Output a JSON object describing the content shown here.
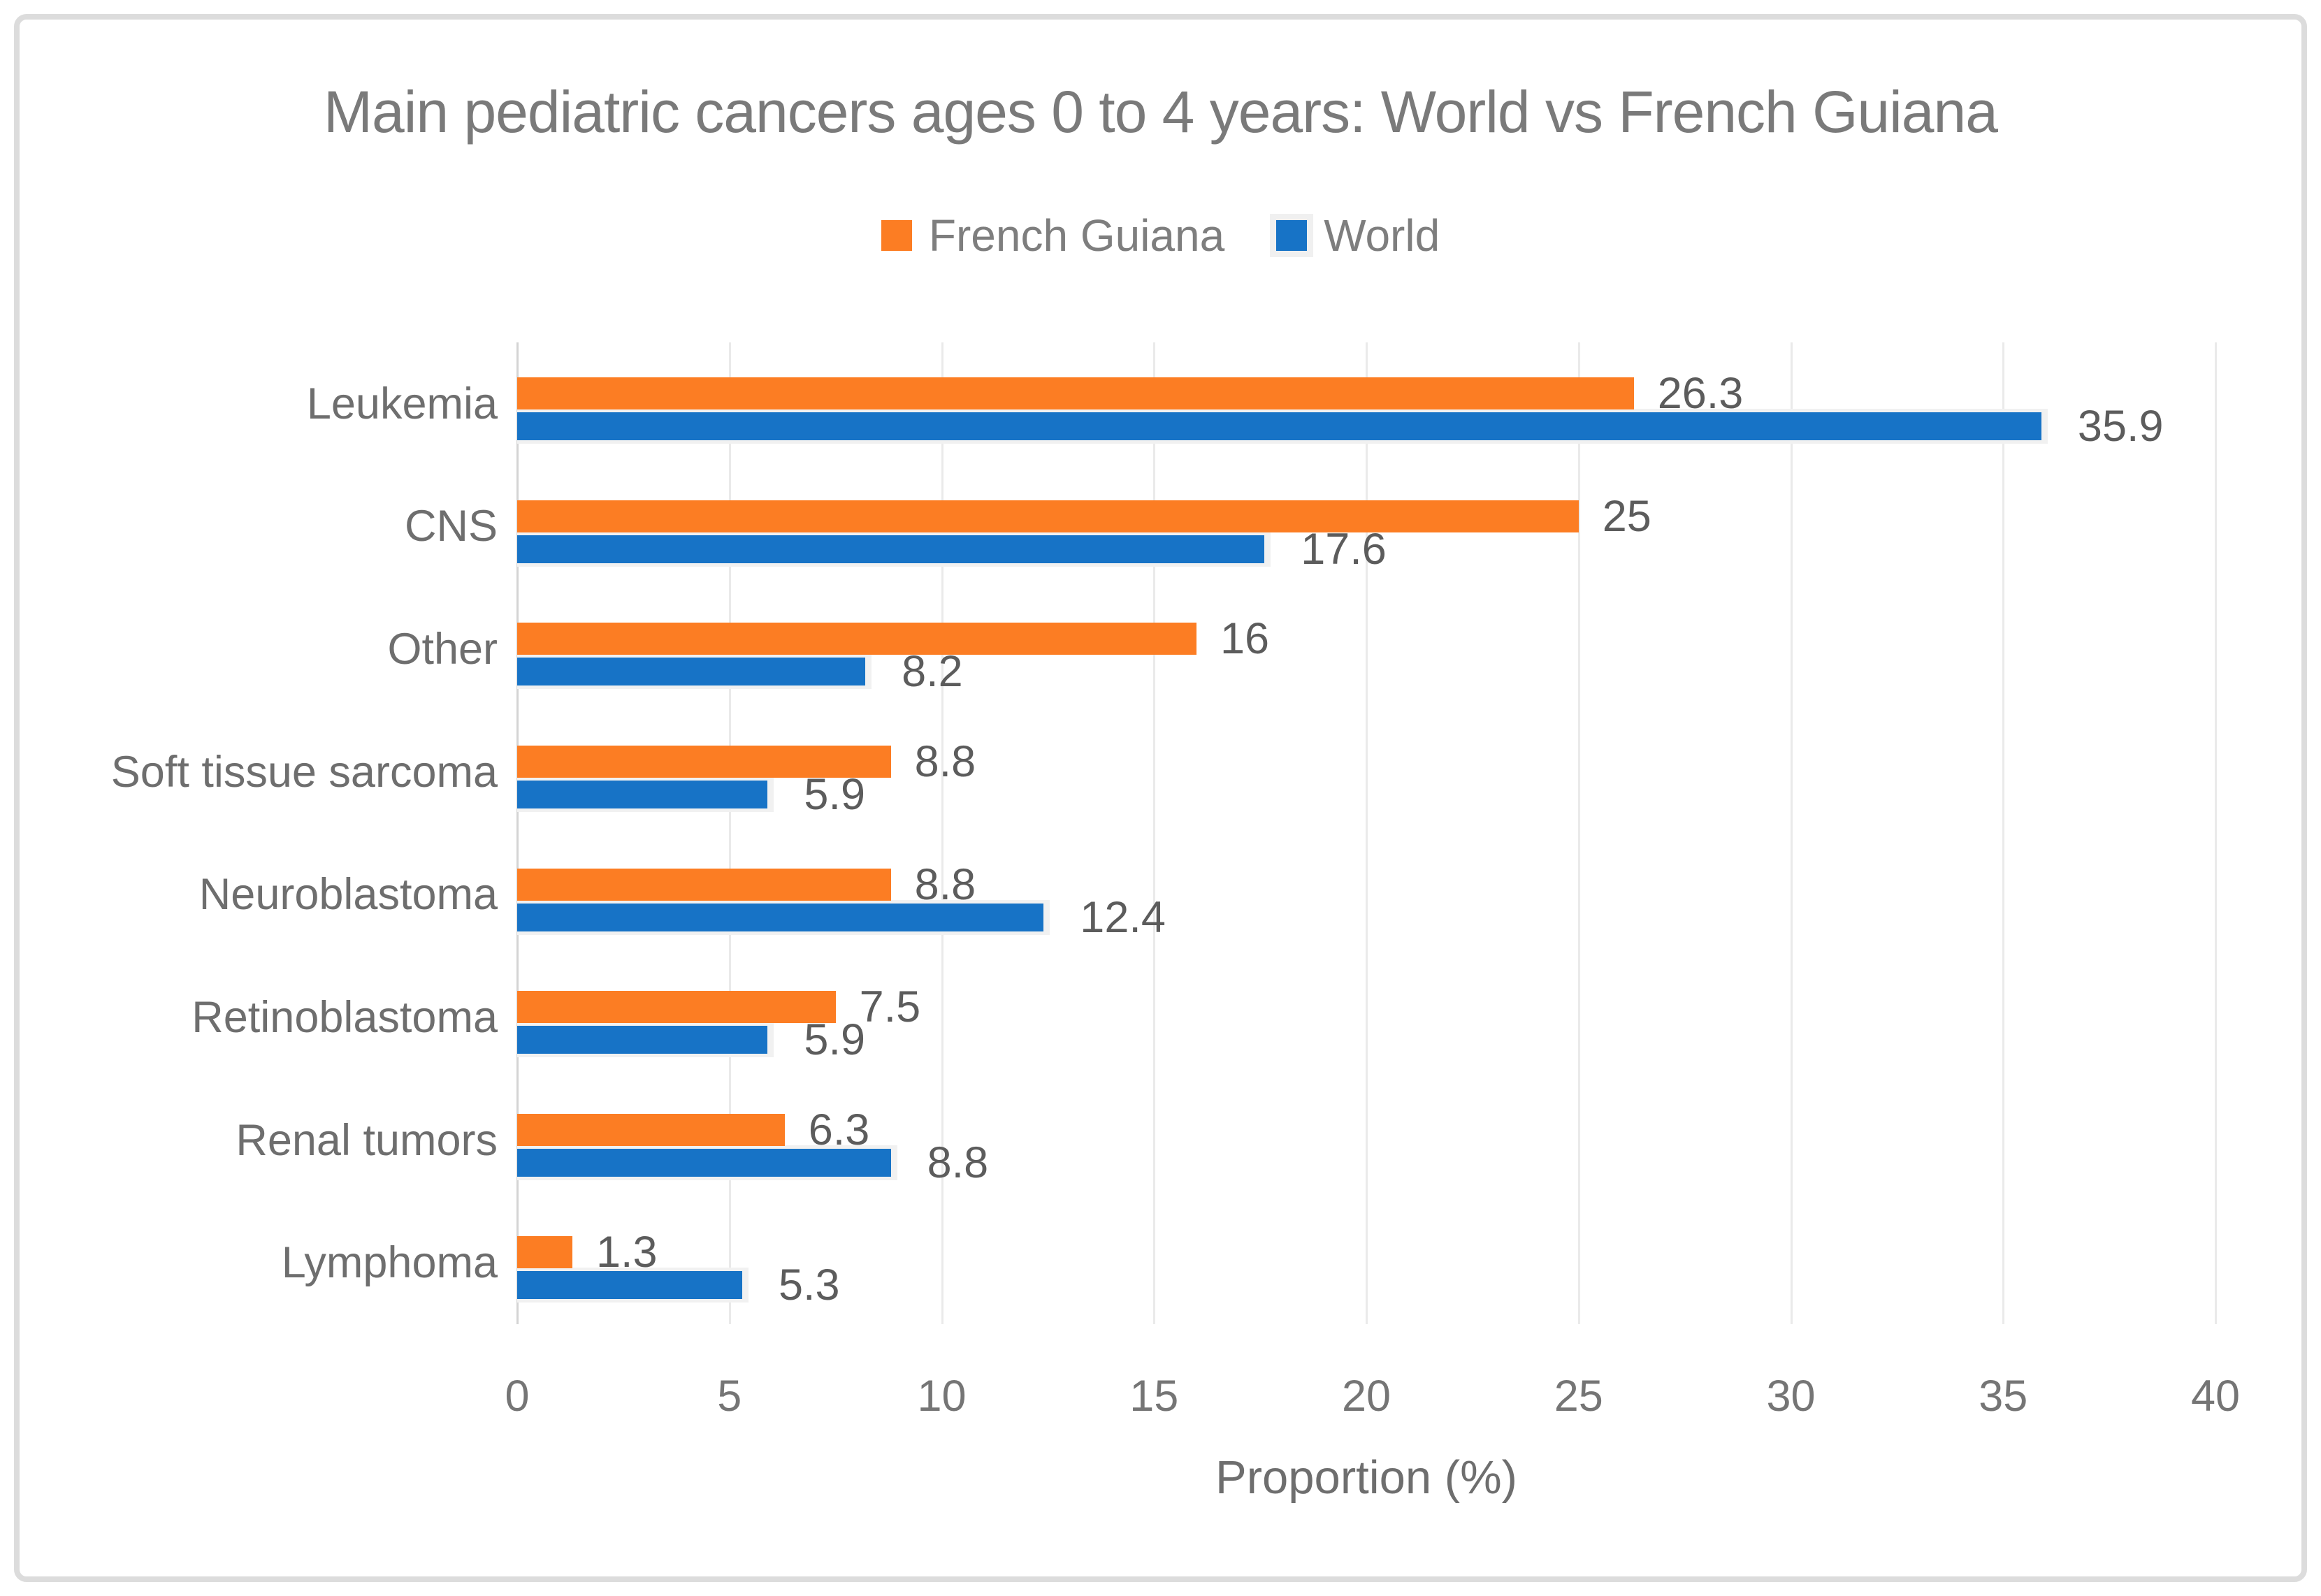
{
  "title": "Main pediatric cancers ages 0 to 4 years: World vs French Guiana",
  "colors": {
    "french_guiana": "#FC7D23",
    "world": "#1773C6",
    "selection_halo": "#F1F1F1",
    "gridline": "#EAEAEA",
    "axis_line": "#D4D4D4",
    "frame_border": "#DCDCDC",
    "title_text": "#7A7A7A",
    "label_text": "#6E6E6E",
    "data_label_text": "#5C5C5C"
  },
  "legend": {
    "items": [
      {
        "label": "French Guiana",
        "color": "#FC7D23",
        "selected": false
      },
      {
        "label": "World",
        "color": "#1773C6",
        "selected": true
      }
    ]
  },
  "chart_data": {
    "type": "bar",
    "orientation": "horizontal",
    "title": "Main pediatric cancers ages 0 to 4 years: World vs French Guiana",
    "categories": [
      "Leukemia",
      "CNS",
      "Other",
      "Soft tissue sarcoma",
      "Neuroblastoma",
      "Retinoblastoma",
      "Renal tumors",
      "Lymphoma"
    ],
    "series": [
      {
        "name": "French Guiana",
        "color": "#FC7D23",
        "selected": false,
        "values": [
          26.3,
          25,
          16,
          8.8,
          8.8,
          7.5,
          6.3,
          1.3
        ]
      },
      {
        "name": "World",
        "color": "#1773C6",
        "selected": true,
        "values": [
          35.9,
          17.6,
          8.2,
          5.9,
          12.4,
          5.9,
          8.8,
          5.3
        ]
      }
    ],
    "xlabel": "Proportion (%)",
    "ylabel": "",
    "xlim": [
      0,
      40
    ],
    "xticks": [
      0,
      5,
      10,
      15,
      20,
      25,
      30,
      35,
      40
    ],
    "grid": true,
    "data_labels": true,
    "legend_position": "top"
  }
}
